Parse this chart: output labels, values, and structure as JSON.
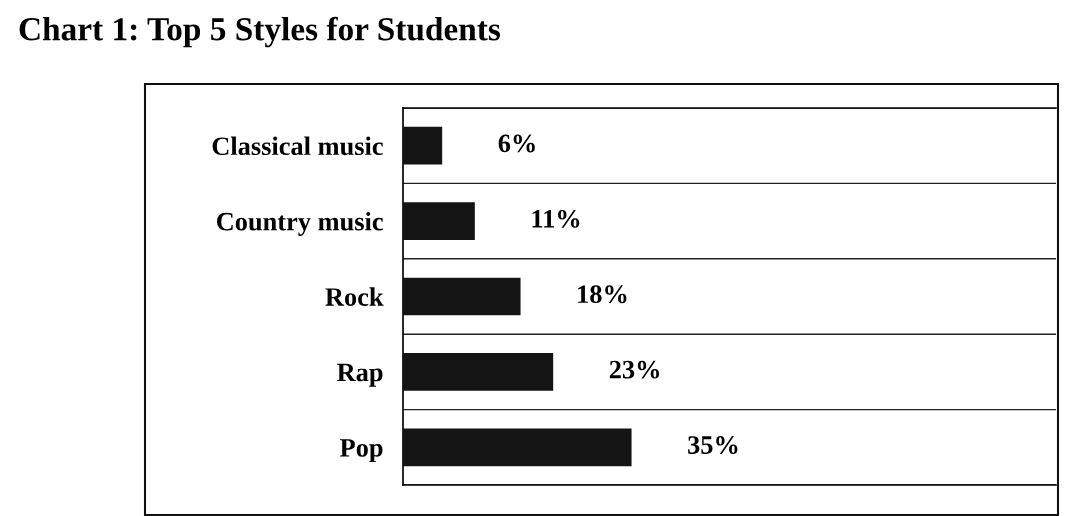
{
  "chart_data": {
    "type": "bar",
    "orientation": "horizontal",
    "title": "Chart 1: Top 5 Styles for Students",
    "categories": [
      "Classical music",
      "Country music",
      "Rock",
      "Rap",
      "Pop"
    ],
    "values": [
      6,
      11,
      18,
      23,
      35
    ],
    "value_labels": [
      "6%",
      "11%",
      "18%",
      "23%",
      "35%"
    ],
    "color": "#141414",
    "xlim": [
      0,
      100
    ],
    "tick_labels": "y",
    "grid": "y",
    "legend": false
  }
}
